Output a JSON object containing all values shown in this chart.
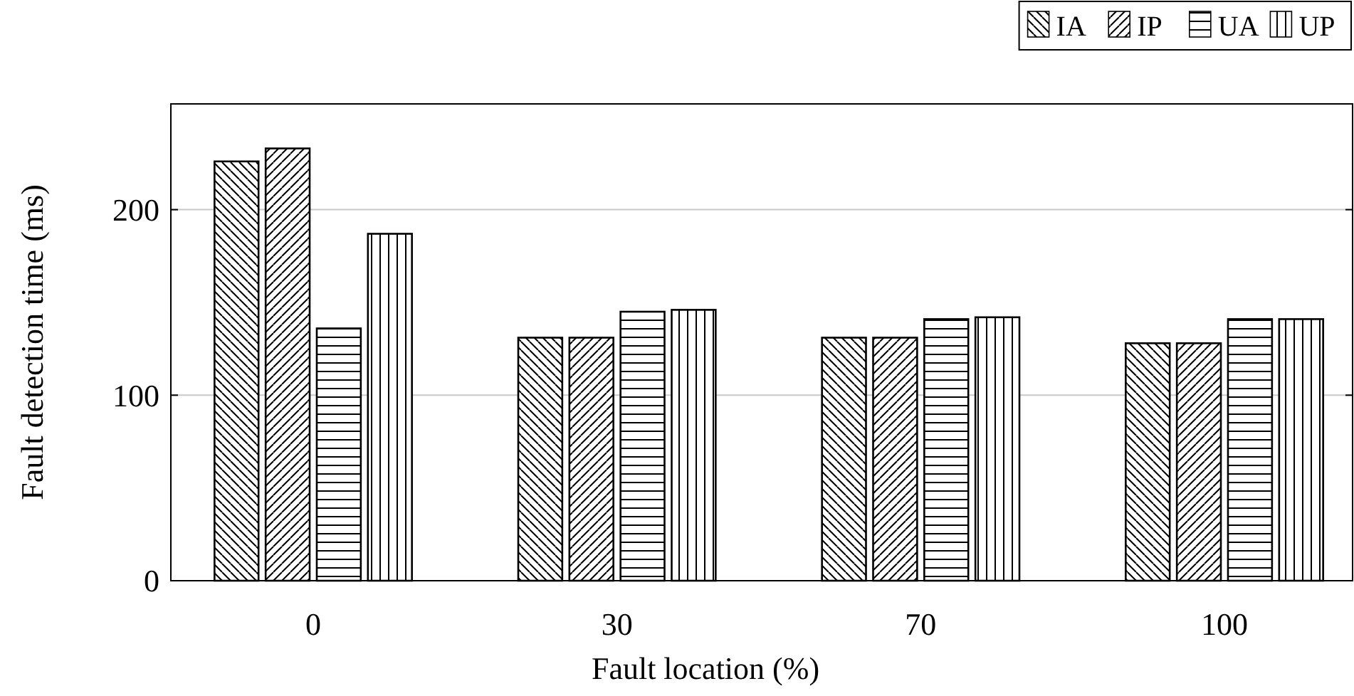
{
  "chart_data": {
    "type": "bar",
    "xlabel": "Fault location (%)",
    "ylabel": "Fault detection time (ms)",
    "categories": [
      "0",
      "30",
      "70",
      "100"
    ],
    "series": [
      {
        "name": "IA",
        "color": "#000000",
        "values": [
          226,
          131,
          131,
          128
        ]
      },
      {
        "name": "IP",
        "color": "#000000",
        "values": [
          233,
          131,
          131,
          128
        ]
      },
      {
        "name": "UA",
        "color": "#000000",
        "values": [
          136,
          145,
          141,
          141
        ]
      },
      {
        "name": "UP",
        "color": "#000000",
        "values": [
          187,
          146,
          142,
          141
        ]
      }
    ],
    "ylim": [
      0,
      257
    ],
    "yticks": [
      0,
      100,
      200
    ],
    "grid": "y",
    "legend": "top right"
  }
}
